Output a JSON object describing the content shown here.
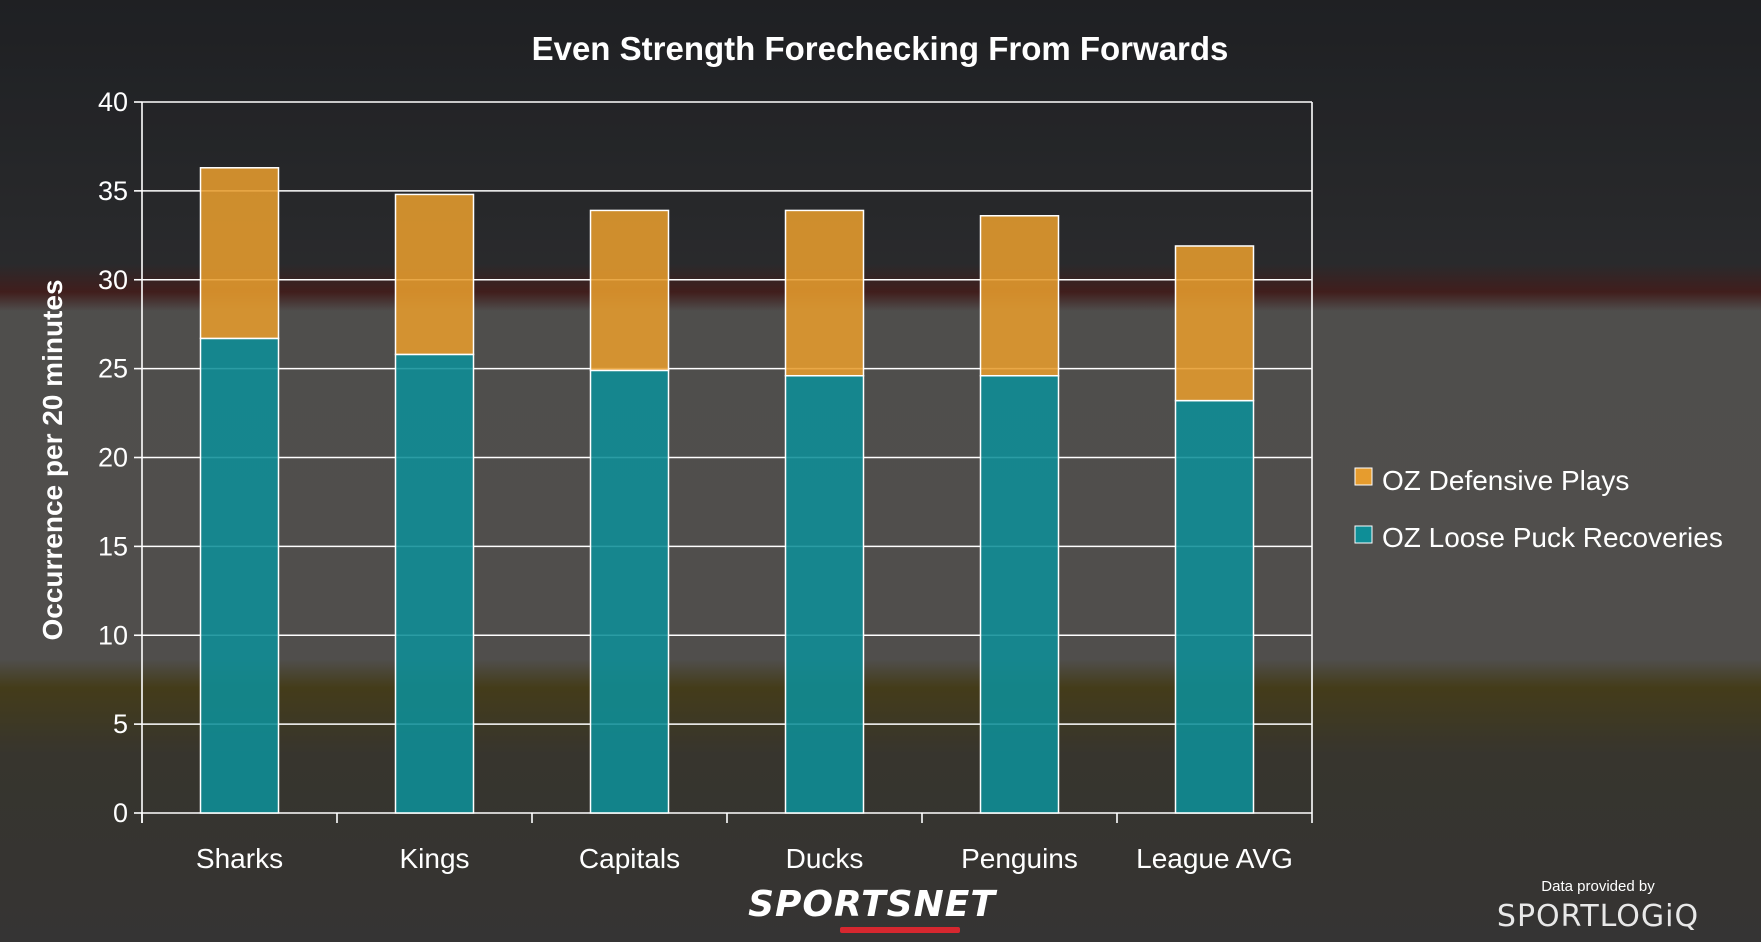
{
  "colors": {
    "defensive": "#E69C2E",
    "recoveries": "#0E8E97",
    "grid": "#ffffff",
    "text": "#ffffff"
  },
  "chart_data": {
    "type": "bar",
    "stacked": true,
    "title": "Even Strength Forechecking From Forwards",
    "xlabel": "",
    "ylabel": "Occurrence per 20 minutes",
    "ylim": [
      0,
      40
    ],
    "yticks": [
      0,
      5,
      10,
      15,
      20,
      25,
      30,
      35,
      40
    ],
    "grid": true,
    "legend_position": "right",
    "categories": [
      "Sharks",
      "Kings",
      "Capitals",
      "Ducks",
      "Penguins",
      "League AVG"
    ],
    "series": [
      {
        "name": "OZ Loose Puck Recoveries",
        "values": [
          26.7,
          25.8,
          24.9,
          24.6,
          24.6,
          23.2
        ]
      },
      {
        "name": "OZ Defensive Plays",
        "values": [
          9.6,
          9.0,
          9.0,
          9.3,
          9.0,
          8.7
        ]
      }
    ]
  },
  "branding": {
    "logo_text": "SPORTSNET",
    "credit_label": "Data provided by",
    "credit_logo": "SPORTLOGiQ"
  }
}
